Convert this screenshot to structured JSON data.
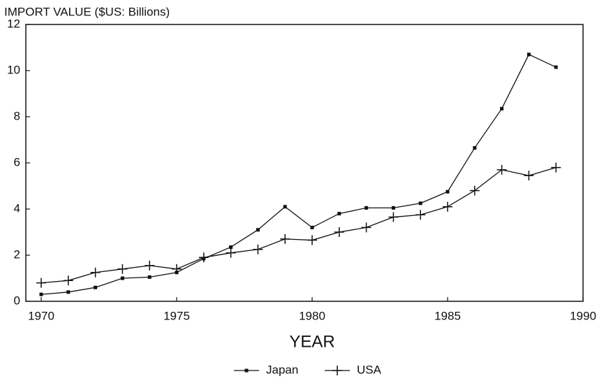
{
  "chart_data": {
    "type": "line",
    "title": "IMPORT VALUE ($US: Billions)",
    "x_label": "YEAR",
    "x": [
      1970,
      1971,
      1972,
      1973,
      1974,
      1975,
      1976,
      1977,
      1978,
      1979,
      1980,
      1981,
      1982,
      1983,
      1984,
      1985,
      1986,
      1987,
      1988,
      1989
    ],
    "series": [
      {
        "name": "Japan",
        "color": "#111111",
        "marker": "square",
        "values": [
          0.3,
          0.4,
          0.6,
          1.0,
          1.05,
          1.25,
          1.85,
          2.35,
          3.1,
          4.1,
          3.2,
          3.8,
          4.05,
          4.05,
          4.25,
          4.75,
          6.65,
          8.35,
          10.7,
          10.15
        ]
      },
      {
        "name": "USA",
        "color": "#111111",
        "marker": "plus",
        "values": [
          0.8,
          0.9,
          1.25,
          1.4,
          1.55,
          1.4,
          1.9,
          2.1,
          2.25,
          2.7,
          2.65,
          3.0,
          3.2,
          3.65,
          3.75,
          4.1,
          4.8,
          5.7,
          5.45,
          5.8
        ]
      }
    ],
    "xlim": [
      1970,
      1990
    ],
    "xticks": [
      1970,
      1975,
      1980,
      1985,
      1990
    ],
    "ylim": [
      0,
      12
    ],
    "yticks": [
      0,
      2,
      4,
      6,
      8,
      10,
      12
    ],
    "grid": false,
    "legend": "bottom"
  }
}
